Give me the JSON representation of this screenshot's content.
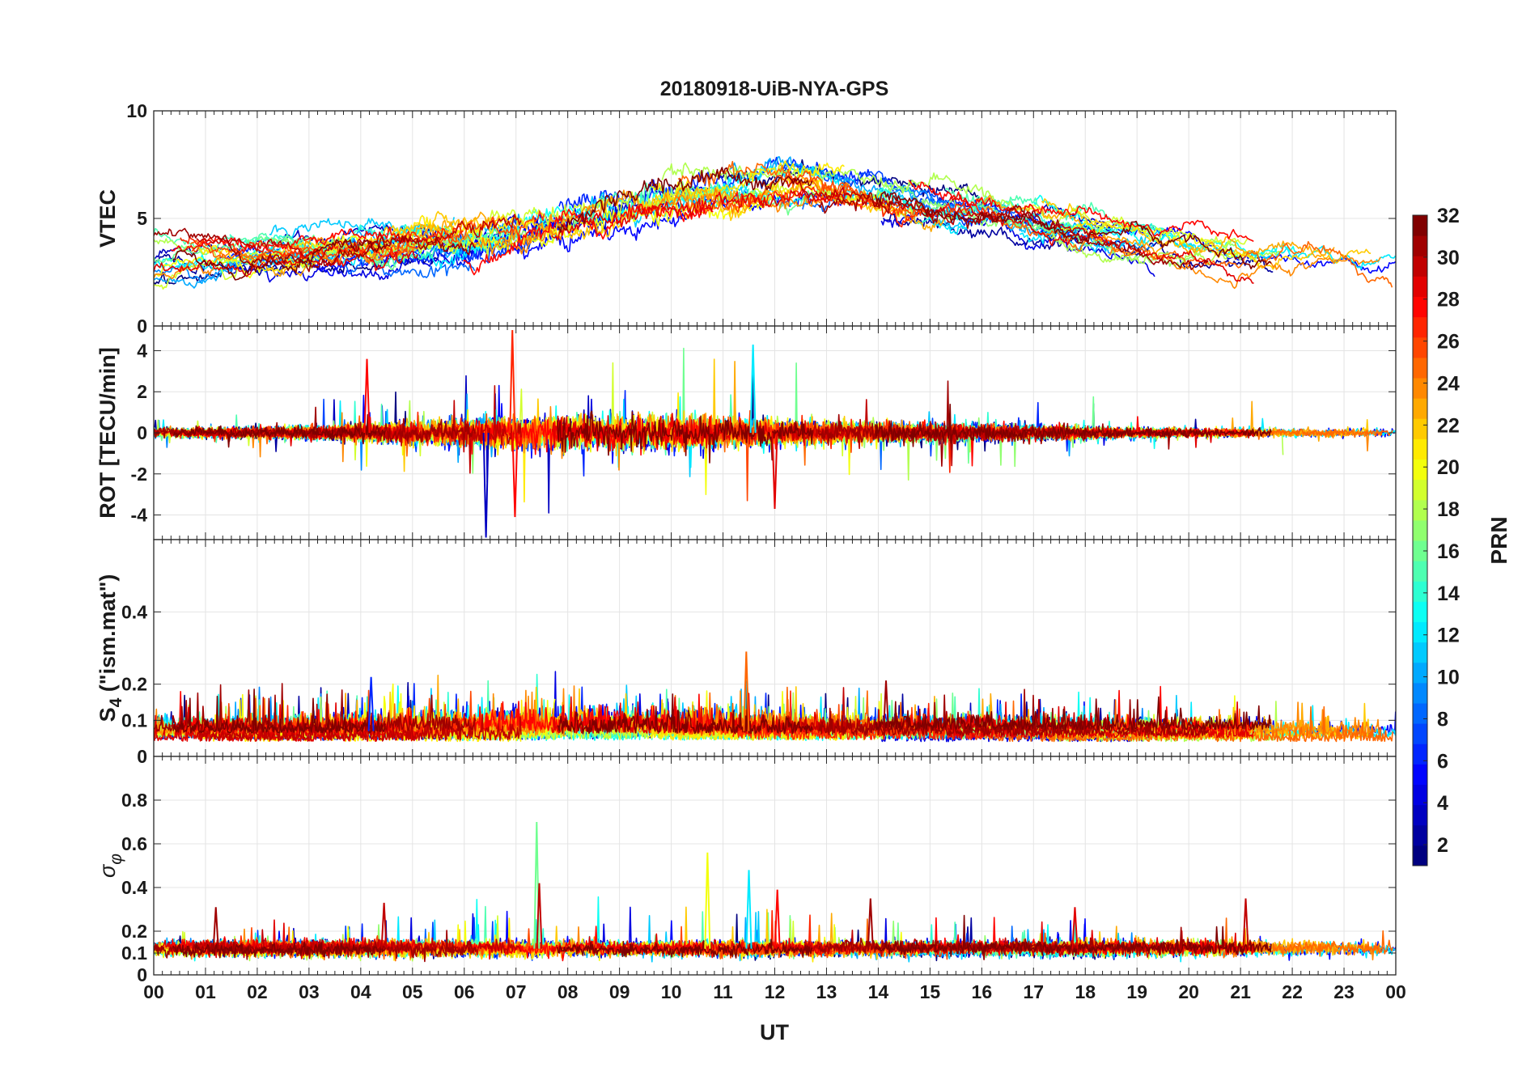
{
  "chart_data": {
    "type": "line",
    "title": "20180918-UiB-NYA-GPS",
    "xlabel": "UT",
    "x_ticks": [
      "00",
      "01",
      "02",
      "03",
      "04",
      "05",
      "06",
      "07",
      "08",
      "09",
      "10",
      "11",
      "12",
      "13",
      "14",
      "15",
      "16",
      "17",
      "18",
      "19",
      "20",
      "21",
      "22",
      "23",
      "00"
    ],
    "xlim": [
      0,
      24
    ],
    "grid": true,
    "colormap": "jet",
    "colorbar": {
      "label": "PRN",
      "range": [
        1,
        32
      ],
      "ticks": [
        "2",
        "4",
        "6",
        "8",
        "10",
        "12",
        "14",
        "16",
        "18",
        "20",
        "22",
        "24",
        "26",
        "28",
        "30",
        "32"
      ],
      "placement": "right"
    },
    "panels": [
      {
        "key": "vtec",
        "ylabel": "VTEC",
        "ylim": [
          0,
          10
        ],
        "y_ticks": [
          "0",
          "5",
          "10"
        ],
        "y_tick_values": [
          0,
          5,
          10
        ],
        "description": "VTEC per PRN, approx. 3-5 at 00 UT, peak 6-9 around 09-15 UT, declining to 2-4 by 23 UT"
      },
      {
        "key": "rot",
        "ylabel": "ROT [TECU/min]",
        "ylim": [
          -5.2,
          5.2
        ],
        "y_ticks": [
          "-4",
          "-2",
          "0",
          "2",
          "4"
        ],
        "y_tick_values": [
          -4,
          -2,
          0,
          2,
          4
        ],
        "peaks": [
          {
            "ut": 6.42,
            "value": -5.1,
            "prn": 3
          },
          {
            "ut": 6.93,
            "value": 5.0,
            "prn": 27
          },
          {
            "ut": 6.98,
            "value": -4.1,
            "prn": 28
          },
          {
            "ut": 4.12,
            "value": 3.6,
            "prn": 28
          },
          {
            "ut": 11.58,
            "value": 4.3,
            "prn": 12
          },
          {
            "ut": 12.0,
            "value": -3.7,
            "prn": 29
          }
        ]
      },
      {
        "key": "s4",
        "ylabel": "S4 (\"ism.mat\")",
        "ylabel_main": "S",
        "ylabel_sub": "4",
        "ylabel_rest": " (\"ism.mat\")",
        "ylim": [
          0,
          0.6
        ],
        "y_ticks": [
          "0",
          "0.1",
          "0.2",
          "0.4"
        ],
        "y_tick_values": [
          0,
          0.1,
          0.2,
          0.4
        ],
        "peaks": [
          {
            "ut": 11.45,
            "value": 0.29,
            "prn": 25
          },
          {
            "ut": 4.2,
            "value": 0.22,
            "prn": 6
          },
          {
            "ut": 14.15,
            "value": 0.21,
            "prn": 31
          }
        ]
      },
      {
        "key": "sigma",
        "ylabel": "σφ",
        "ylabel_main": "σ",
        "ylabel_sub": "φ",
        "ylim": [
          0,
          1.0
        ],
        "y_ticks": [
          "0",
          "0.1",
          "0.2",
          "0.4",
          "0.6",
          "0.8"
        ],
        "y_tick_values": [
          0,
          0.1,
          0.2,
          0.4,
          0.6,
          0.8
        ],
        "peaks": [
          {
            "ut": 7.4,
            "value": 0.7,
            "prn": 16
          },
          {
            "ut": 10.7,
            "value": 0.56,
            "prn": 20
          },
          {
            "ut": 11.5,
            "value": 0.48,
            "prn": 12
          },
          {
            "ut": 7.45,
            "value": 0.42,
            "prn": 30
          },
          {
            "ut": 12.05,
            "value": 0.39,
            "prn": 28
          },
          {
            "ut": 13.85,
            "value": 0.35,
            "prn": 31
          },
          {
            "ut": 21.1,
            "value": 0.35,
            "prn": 30
          },
          {
            "ut": 4.45,
            "value": 0.33,
            "prn": 30
          },
          {
            "ut": 1.2,
            "value": 0.31,
            "prn": 31
          },
          {
            "ut": 17.8,
            "value": 0.31,
            "prn": 29
          }
        ]
      }
    ]
  }
}
